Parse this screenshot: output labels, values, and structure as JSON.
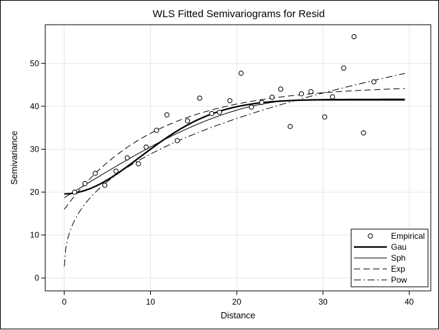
{
  "chart_data": {
    "type": "scatter",
    "title": "WLS Fitted Semivariograms for Resid",
    "xlabel": "Distance",
    "ylabel": "Semivariance",
    "xlim": [
      -2.2,
      42.5
    ],
    "ylim": [
      -3,
      59
    ],
    "xticks": [
      0,
      10,
      20,
      30,
      40
    ],
    "yticks": [
      0,
      10,
      20,
      30,
      40,
      50
    ],
    "grid": true,
    "legend_position": "bottom-right",
    "empirical": {
      "name": "Empirical",
      "x": [
        1.2,
        2.4,
        3.6,
        4.7,
        6.0,
        7.3,
        8.6,
        9.5,
        10.7,
        11.9,
        13.1,
        14.3,
        15.7,
        17.1,
        18.0,
        19.2,
        20.5,
        21.7,
        22.9,
        24.1,
        25.1,
        26.2,
        27.5,
        28.6,
        30.2,
        31.1,
        32.4,
        33.6,
        34.7,
        35.9
      ],
      "y": [
        20.0,
        22.0,
        24.4,
        21.6,
        24.9,
        28.0,
        26.6,
        30.5,
        34.4,
        38.0,
        32.0,
        36.6,
        41.9,
        38.3,
        38.6,
        41.3,
        47.7,
        39.8,
        40.9,
        42.1,
        44.0,
        35.3,
        42.9,
        43.4,
        37.5,
        42.2,
        48.9,
        56.2,
        33.8,
        45.7
      ]
    },
    "series": [
      {
        "name": "Gau",
        "model": "gaussian",
        "nugget": 19.6,
        "sill": 41.6,
        "range": 12.5
      },
      {
        "name": "Sph",
        "model": "spherical",
        "nugget": 18.7,
        "sill": 41.4,
        "range": 27.5
      },
      {
        "name": "Exp",
        "model": "exponential",
        "nugget": 16.0,
        "sill": 44.8,
        "range": 10.5
      },
      {
        "name": "Pow",
        "model": "power",
        "coef": 12.1,
        "exponent": 0.37,
        "offset": 0.5
      }
    ],
    "curve_xmax": 39.5
  },
  "legend": {
    "items": [
      {
        "label": "Empirical",
        "symbol": "circle"
      },
      {
        "label": "Gau",
        "symbol": "thick-solid"
      },
      {
        "label": "Sph",
        "symbol": "solid"
      },
      {
        "label": "Exp",
        "symbol": "dashed"
      },
      {
        "label": "Pow",
        "symbol": "dash-dot"
      }
    ]
  }
}
